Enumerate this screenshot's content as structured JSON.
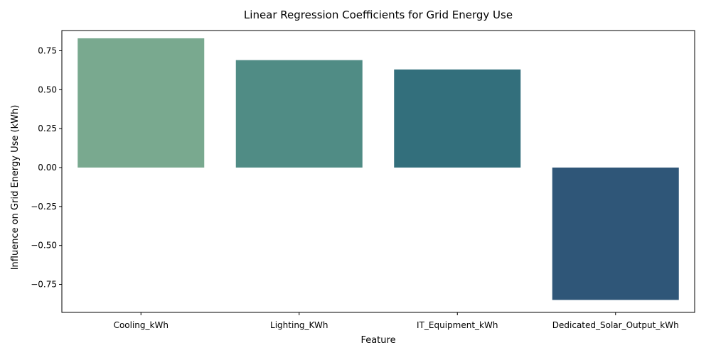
{
  "chart_data": {
    "type": "bar",
    "title": "Linear Regression Coefficients for Grid Energy Use",
    "xlabel": "Feature",
    "ylabel": "Influence on Grid Energy Use (kWh)",
    "categories": [
      "Cooling_kWh",
      "Lighting_KWh",
      "IT_Equipment_kWh",
      "Dedicated_Solar_Output_kWh"
    ],
    "values": [
      0.83,
      0.69,
      0.63,
      -0.85
    ],
    "colors": [
      "#79a98f",
      "#508c85",
      "#336f7c",
      "#2f5678"
    ],
    "ylim": [
      -0.93,
      0.88
    ],
    "yticks": [
      -0.75,
      -0.5,
      -0.25,
      0.0,
      0.25,
      0.5,
      0.75
    ],
    "ytick_labels": [
      "−0.75",
      "−0.50",
      "−0.25",
      "0.00",
      "0.25",
      "0.50",
      "0.75"
    ],
    "grid": false,
    "legend": "none"
  }
}
